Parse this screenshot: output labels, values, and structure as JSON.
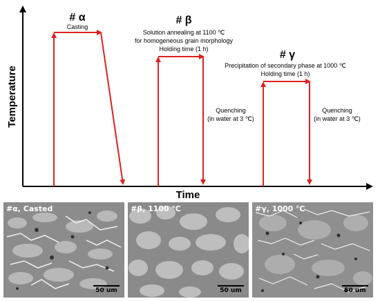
{
  "axes": {
    "y_label": "Temperature",
    "x_label": "Time"
  },
  "colors": {
    "process_line": "#e02020",
    "axis": "#000000"
  },
  "stages": [
    {
      "id": "alpha",
      "title": "# α",
      "lines": [
        "Casting"
      ],
      "side_note": []
    },
    {
      "id": "beta",
      "title": "# β",
      "lines": [
        "Solution annealing at 1100 ℃",
        "for homogeneous grain morphology",
        "Holding time (1 h)"
      ],
      "side_note": [
        "Quenching",
        "(in water at 3 ℃)"
      ]
    },
    {
      "id": "gamma",
      "title": "# γ",
      "lines": [
        "Precipitation of secondary phase at 1000 ℃",
        "Holding time (1 h)"
      ],
      "side_note": [
        "Quenching",
        "(in water at 3 ℃)"
      ]
    }
  ],
  "micrographs": [
    {
      "label": "#α, Casted",
      "scale": "50 um"
    },
    {
      "label": "#β, 1100 ℃",
      "scale": "50 um"
    },
    {
      "label": "#γ, 1000 ℃",
      "scale": "50 um"
    }
  ]
}
